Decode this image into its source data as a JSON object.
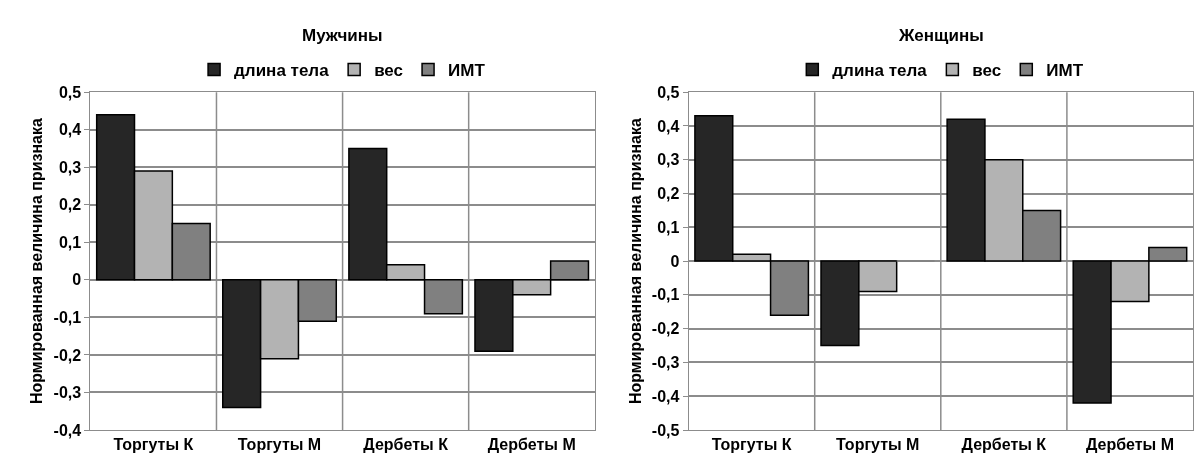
{
  "chart_data": [
    {
      "type": "bar",
      "title": "Мужчины",
      "ylabel": "Нормированная величина признака",
      "categories": [
        "Торгуты К",
        "Торгуты М",
        "Дербеты К",
        "Дербеты М"
      ],
      "series": [
        {
          "name": "длина тела",
          "color": "#262626",
          "values": [
            0.44,
            -0.34,
            0.35,
            -0.19
          ]
        },
        {
          "name": "вес",
          "color": "#b3b3b3",
          "values": [
            0.29,
            -0.21,
            0.04,
            -0.04
          ]
        },
        {
          "name": "ИМТ",
          "color": "#808080",
          "values": [
            0.15,
            -0.11,
            -0.09,
            0.05
          ]
        }
      ],
      "ylim": [
        -0.4,
        0.5
      ],
      "yticks": [
        {
          "value": -0.4,
          "label": "-0,4"
        },
        {
          "value": -0.3,
          "label": "-0,3"
        },
        {
          "value": -0.2,
          "label": "-0,2"
        },
        {
          "value": -0.1,
          "label": "-0,1"
        },
        0,
        {
          "value": 0.1,
          "label": "0,1"
        },
        {
          "value": 0.2,
          "label": "0,2"
        },
        {
          "value": 0.3,
          "label": "0,3"
        },
        {
          "value": 0.4,
          "label": "0,4"
        },
        {
          "value": 0.5,
          "label": "0,5"
        }
      ],
      "grid": true,
      "legend": "top"
    },
    {
      "type": "bar",
      "title": "Женщины",
      "ylabel": "Нормированная величина признака",
      "categories": [
        "Торгуты К",
        "Торгуты М",
        "Дербеты К",
        "Дербеты М"
      ],
      "series": [
        {
          "name": "длина тела",
          "color": "#262626",
          "values": [
            0.43,
            -0.25,
            0.42,
            -0.42
          ]
        },
        {
          "name": "вес",
          "color": "#b3b3b3",
          "values": [
            0.02,
            -0.09,
            0.3,
            -0.12
          ]
        },
        {
          "name": "ИМТ",
          "color": "#808080",
          "values": [
            -0.16,
            0.0,
            0.15,
            0.04
          ]
        }
      ],
      "ylim": [
        -0.5,
        0.5
      ],
      "yticks": [
        {
          "value": -0.5,
          "label": "-0,5"
        },
        {
          "value": -0.4,
          "label": "-0,4"
        },
        {
          "value": -0.3,
          "label": "-0,3"
        },
        {
          "value": -0.2,
          "label": "-0,2"
        },
        {
          "value": -0.1,
          "label": "-0,1"
        },
        0,
        {
          "value": 0.1,
          "label": "0,1"
        },
        {
          "value": 0.2,
          "label": "0,2"
        },
        {
          "value": 0.3,
          "label": "0,3"
        },
        {
          "value": 0.4,
          "label": "0,4"
        },
        {
          "value": 0.5,
          "label": "0,5"
        }
      ],
      "grid": true,
      "legend": "top"
    }
  ]
}
